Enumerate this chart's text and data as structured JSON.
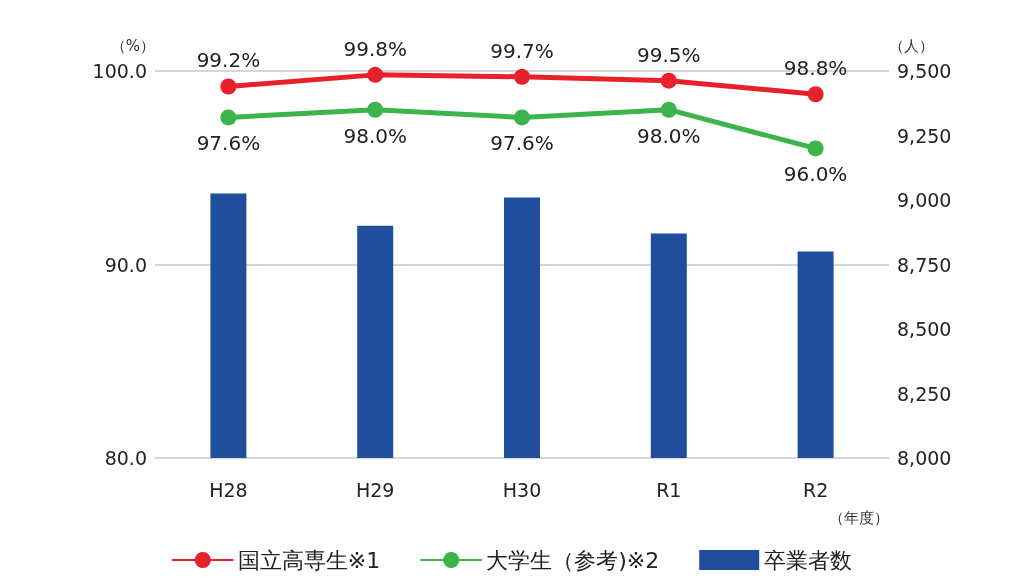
{
  "chart_data": {
    "type": "line",
    "categories": [
      "H28",
      "H29",
      "H30",
      "R1",
      "R2"
    ],
    "xlabel": "（年度）",
    "ylabel": "（%）",
    "y2label": "（人）",
    "series": [
      {
        "name": "国立高専生※1",
        "color": "#e8202a",
        "values": [
          99.2,
          99.8,
          99.7,
          99.5,
          98.8
        ],
        "value_labels": [
          "99.2%",
          "99.8%",
          "99.7%",
          "99.5%",
          "98.8%"
        ]
      },
      {
        "name": "大学生（参考)※2",
        "color": "#3cb44b",
        "values": [
          97.6,
          98.0,
          97.6,
          98.0,
          96.0
        ],
        "value_labels": [
          "97.6%",
          "98.0%",
          "97.6%",
          "98.0%",
          "96.0%"
        ]
      },
      {
        "name": "卒業者数",
        "type": "bar",
        "axis": "y2",
        "color": "#1f4e9c",
        "values": [
          9025,
          8900,
          9010,
          8870,
          8800
        ]
      }
    ],
    "ylim": [
      80,
      100
    ],
    "yticks": [
      {
        "value": 80,
        "label": "80.0"
      },
      {
        "value": 90,
        "label": "90.0"
      },
      {
        "value": 100,
        "label": "100.0"
      }
    ],
    "y2lim": [
      8000,
      9500
    ],
    "y2ticks": [
      {
        "value": 8000,
        "label": "8,000"
      },
      {
        "value": 8250,
        "label": "8,250"
      },
      {
        "value": 8500,
        "label": "8,500"
      },
      {
        "value": 8750,
        "label": "8,750"
      },
      {
        "value": 9000,
        "label": "9,000"
      },
      {
        "value": 9250,
        "label": "9,250"
      },
      {
        "value": 9500,
        "label": "9,500"
      }
    ],
    "grid": "y",
    "legend": "bottom",
    "marker": "circle"
  }
}
